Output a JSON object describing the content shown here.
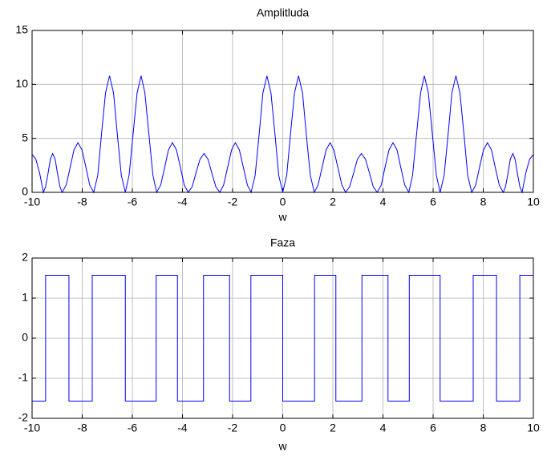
{
  "chart_data": [
    {
      "type": "line",
      "title": "Amplitluda",
      "xlabel": "w",
      "color": "#0000ff",
      "grid": true,
      "xlim": [
        -10,
        10
      ],
      "xticks": [
        -10,
        -8,
        -6,
        -4,
        -2,
        0,
        2,
        4,
        6,
        8,
        10
      ],
      "ylim": [
        0,
        15
      ],
      "yticks": [
        0,
        5,
        10,
        15
      ],
      "x": [
        -10,
        -9.85,
        -9.7,
        -9.55,
        -9.46,
        -9.36,
        -9.27,
        -9.18,
        -9.08,
        -8.99,
        -8.89,
        -8.8,
        -8.64,
        -8.48,
        -8.33,
        -8.17,
        -8.01,
        -7.85,
        -7.7,
        -7.54,
        -7.38,
        -7.23,
        -7.07,
        -6.91,
        -6.75,
        -6.6,
        -6.44,
        -6.28,
        -6.13,
        -5.97,
        -5.81,
        -5.65,
        -5.5,
        -5.34,
        -5.18,
        -5.03,
        -4.87,
        -4.71,
        -4.56,
        -4.4,
        -4.24,
        -4.08,
        -3.93,
        -3.77,
        -3.61,
        -3.46,
        -3.3,
        -3.14,
        -2.98,
        -2.83,
        -2.67,
        -2.51,
        -2.36,
        -2.2,
        -2.04,
        -1.89,
        -1.73,
        -1.57,
        -1.41,
        -1.26,
        -1.1,
        -0.94,
        -0.79,
        -0.63,
        -0.47,
        -0.31,
        -0.16,
        0,
        0.16,
        0.31,
        0.47,
        0.63,
        0.79,
        0.94,
        1.1,
        1.26,
        1.41,
        1.57,
        1.73,
        1.89,
        2.04,
        2.2,
        2.36,
        2.51,
        2.67,
        2.83,
        2.98,
        3.14,
        3.3,
        3.46,
        3.61,
        3.77,
        3.93,
        4.08,
        4.24,
        4.4,
        4.56,
        4.71,
        4.87,
        5.03,
        5.18,
        5.34,
        5.5,
        5.65,
        5.81,
        5.97,
        6.13,
        6.28,
        6.44,
        6.6,
        6.75,
        6.91,
        7.07,
        7.23,
        7.38,
        7.54,
        7.7,
        7.85,
        8.01,
        8.17,
        8.33,
        8.48,
        8.64,
        8.8,
        8.89,
        8.99,
        9.08,
        9.18,
        9.27,
        9.36,
        9.46,
        9.55,
        9.7,
        9.85,
        10
      ],
      "values": [
        3.5,
        3.07,
        1.8,
        0,
        0.53,
        1.8,
        3.07,
        3.6,
        3.07,
        1.8,
        0.53,
        0,
        0.67,
        2.3,
        3.93,
        4.6,
        3.93,
        2.3,
        0.67,
        0,
        1.58,
        5.4,
        9.22,
        10.8,
        9.22,
        5.4,
        1.58,
        0,
        1.58,
        5.4,
        9.22,
        10.8,
        9.22,
        5.4,
        1.58,
        0,
        0.67,
        2.3,
        3.93,
        4.6,
        3.93,
        2.3,
        0.67,
        0,
        0.53,
        1.8,
        3.07,
        3.6,
        3.07,
        1.8,
        0.53,
        0,
        0.67,
        2.3,
        3.93,
        4.6,
        3.93,
        2.3,
        0.67,
        0,
        1.58,
        5.4,
        9.22,
        10.8,
        9.22,
        5.4,
        1.58,
        0,
        1.58,
        5.4,
        9.22,
        10.8,
        9.22,
        5.4,
        1.58,
        0,
        0.67,
        2.3,
        3.93,
        4.6,
        3.93,
        2.3,
        0.67,
        0,
        0.53,
        1.8,
        3.07,
        3.6,
        3.07,
        1.8,
        0.53,
        0,
        0.67,
        2.3,
        3.93,
        4.6,
        3.93,
        2.3,
        0.67,
        0,
        1.58,
        5.4,
        9.22,
        10.8,
        9.22,
        5.4,
        1.58,
        0,
        1.58,
        5.4,
        9.22,
        10.8,
        9.22,
        5.4,
        1.58,
        0,
        0.67,
        2.3,
        3.93,
        4.6,
        3.93,
        2.3,
        0.67,
        0,
        0.53,
        1.8,
        3.07,
        3.6,
        3.07,
        1.8,
        0.53,
        0,
        1.8,
        3.07,
        3.5
      ]
    },
    {
      "type": "line",
      "title": "Faza",
      "xlabel": "w",
      "color": "#0000ff",
      "grid": true,
      "xlim": [
        -10,
        10
      ],
      "xticks": [
        -10,
        -8,
        -6,
        -4,
        -2,
        0,
        2,
        4,
        6,
        8,
        10
      ],
      "ylim": [
        -2,
        2
      ],
      "yticks": [
        -2,
        -1,
        0,
        1,
        2
      ],
      "x": [
        -10,
        -9.46,
        -9.46,
        -8.53,
        -8.53,
        -7.6,
        -7.6,
        -6.28,
        -6.28,
        -5.05,
        -5.05,
        -4.2,
        -4.2,
        -3.16,
        -3.16,
        -2.12,
        -2.12,
        -1.27,
        -1.27,
        0,
        0,
        1.27,
        1.27,
        2.12,
        2.12,
        3.16,
        3.16,
        4.2,
        4.2,
        5.05,
        5.05,
        6.28,
        6.28,
        7.6,
        7.6,
        8.53,
        8.53,
        9.46,
        9.46,
        10
      ],
      "values": [
        -1.5708,
        -1.5708,
        1.5708,
        1.5708,
        -1.5708,
        -1.5708,
        1.5708,
        1.5708,
        -1.5708,
        -1.5708,
        1.5708,
        1.5708,
        -1.5708,
        -1.5708,
        1.5708,
        1.5708,
        -1.5708,
        -1.5708,
        1.5708,
        1.5708,
        -1.5708,
        -1.5708,
        1.5708,
        1.5708,
        -1.5708,
        -1.5708,
        1.5708,
        1.5708,
        -1.5708,
        -1.5708,
        1.5708,
        1.5708,
        -1.5708,
        -1.5708,
        1.5708,
        1.5708,
        -1.5708,
        -1.5708,
        1.5708,
        1.5708
      ]
    }
  ]
}
